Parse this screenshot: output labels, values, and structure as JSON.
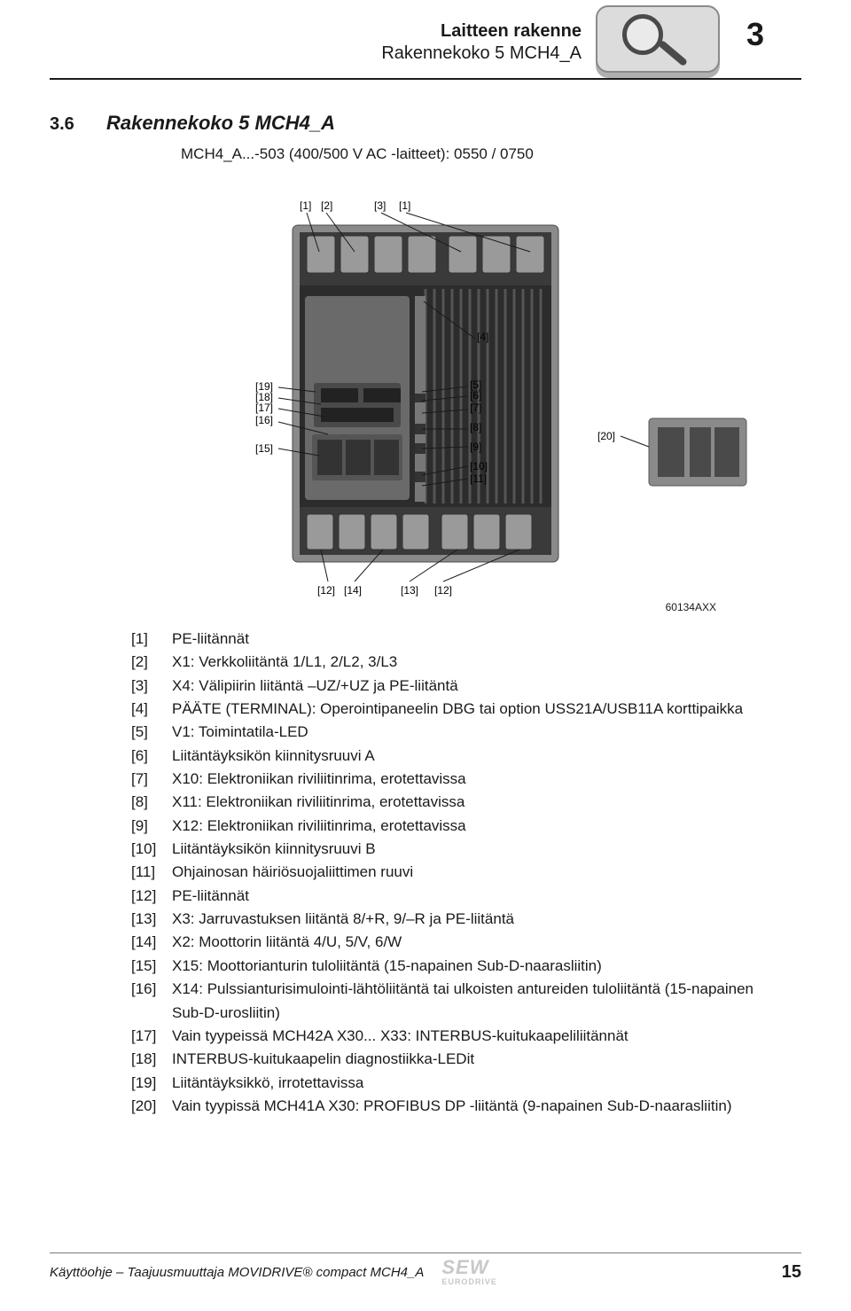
{
  "header": {
    "title1": "Laitteen rakenne",
    "title2": "Rakennekoko 5 MCH4_A",
    "chapter": "3"
  },
  "section": {
    "num": "3.6",
    "title": "Rakennekoko 5 MCH4_A",
    "sub": "MCH4_A...-503 (400/500 V AC -laitteet): 0550 / 0750"
  },
  "figure": {
    "image_code": "60134AXX",
    "callouts_top": [
      "[1]",
      "[2]",
      "[3]",
      "[1]"
    ],
    "callouts_left": [
      "[19]",
      "[18]",
      "[17]",
      "[16]",
      "[15]"
    ],
    "callouts_right": [
      "[5]",
      "[6]",
      "[7]",
      "[8]",
      "[9]",
      "[10]",
      "[11]"
    ],
    "callouts_bottom": [
      "[12]",
      "[14]",
      "[13]",
      "[12]"
    ],
    "callout_ext": "[20]",
    "device_body_color": "#3a3a3a",
    "device_frame_color": "#8a8a8a",
    "device_heatsink_color": "#2c2c2c",
    "callout_line_color": "#1a1a1a",
    "callout_font_size": 12
  },
  "legend": [
    {
      "k": "[1]",
      "v": "PE-liitännät"
    },
    {
      "k": "[2]",
      "v": "X1: Verkkoliitäntä 1/L1, 2/L2, 3/L3"
    },
    {
      "k": "[3]",
      "v": "X4: Välipiirin liitäntä –UZ/+UZ ja PE-liitäntä"
    },
    {
      "k": "[4]",
      "v": "PÄÄTE (TERMINAL): Operointipaneelin DBG tai option USS21A/USB11A korttipaikka"
    },
    {
      "k": "[5]",
      "v": "V1: Toimintatila-LED"
    },
    {
      "k": "[6]",
      "v": "Liitäntäyksikön kiinnitysruuvi A"
    },
    {
      "k": "[7]",
      "v": "X10: Elektroniikan riviliitinrima, erotettavissa"
    },
    {
      "k": "[8]",
      "v": "X11: Elektroniikan riviliitinrima, erotettavissa"
    },
    {
      "k": "[9]",
      "v": "X12: Elektroniikan riviliitinrima, erotettavissa"
    },
    {
      "k": "[10]",
      "v": "Liitäntäyksikön kiinnitysruuvi B"
    },
    {
      "k": "[11]",
      "v": "Ohjainosan häiriösuojaliittimen ruuvi"
    },
    {
      "k": "[12]",
      "v": "PE-liitännät"
    },
    {
      "k": "[13]",
      "v": "X3: Jarruvastuksen liitäntä 8/+R, 9/–R ja PE-liitäntä"
    },
    {
      "k": "[14]",
      "v": "X2: Moottorin liitäntä 4/U, 5/V, 6/W"
    },
    {
      "k": "[15]",
      "v": "X15: Moottorianturin tuloliitäntä (15-napainen Sub-D-naarasliitin)"
    },
    {
      "k": "[16]",
      "v": "X14: Pulssianturisimulointi-lähtöliitäntä tai ulkoisten antureiden tuloliitäntä (15-napainen Sub-D-urosliitin)"
    },
    {
      "k": "[17]",
      "v": "Vain tyypeissä MCH42A X30... X33: INTERBUS-kuitukaapeliliitännät"
    },
    {
      "k": "[18]",
      "v": "INTERBUS-kuitukaapelin diagnostiikka-LEDit"
    },
    {
      "k": "[19]",
      "v": "Liitäntäyksikkö, irrotettavissa"
    },
    {
      "k": "[20]",
      "v": "Vain tyypissä MCH41A X30: PROFIBUS DP -liitäntä (9-napainen Sub-D-naarasliitin)"
    }
  ],
  "footer": {
    "text": "Käyttöohje – Taajuusmuuttaja MOVIDRIVE® compact MCH4_A",
    "page": "15",
    "brand1": "SEW",
    "brand2": "EURODRIVE"
  }
}
